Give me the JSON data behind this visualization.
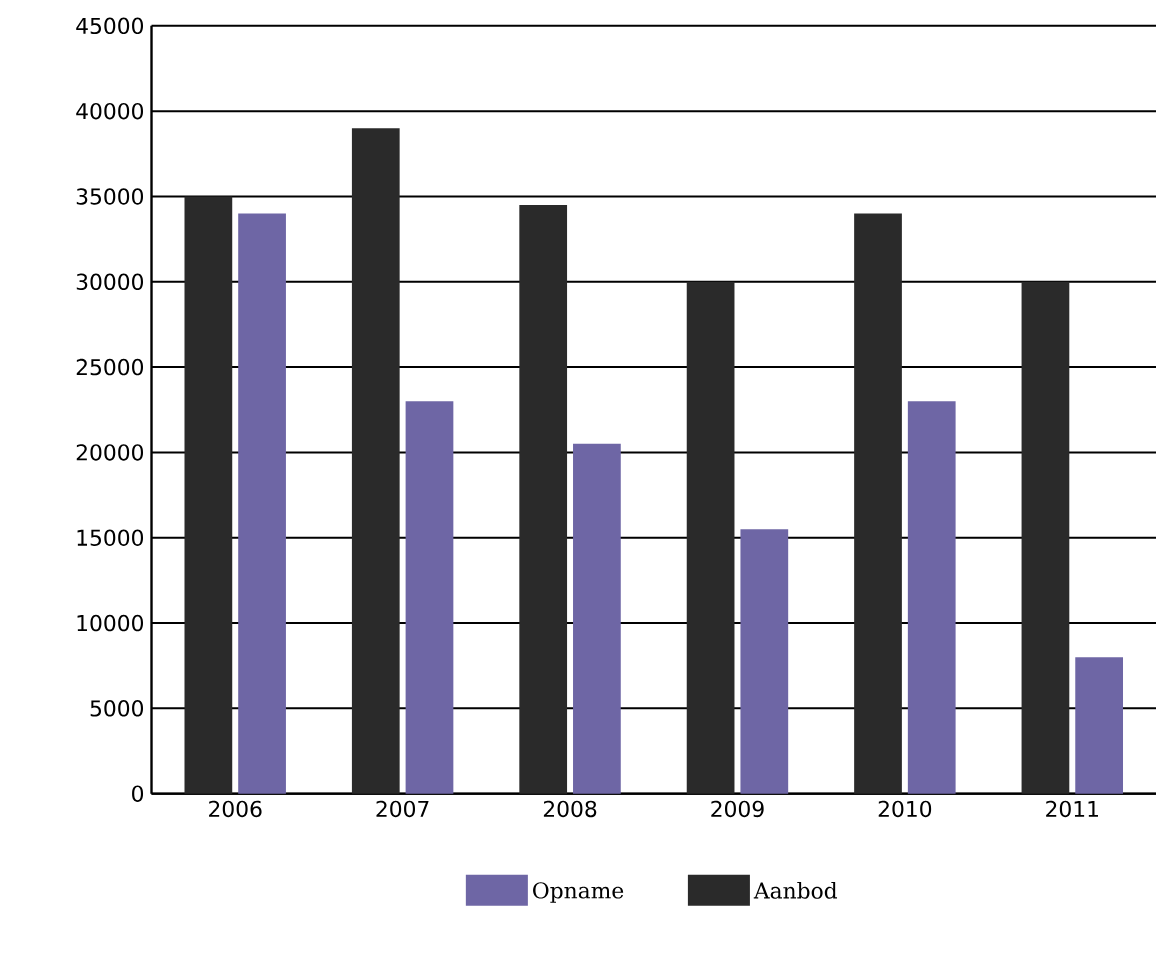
{
  "chart_data": {
    "type": "bar",
    "categories": [
      "2006",
      "2007",
      "2008",
      "2009",
      "2010",
      "2011"
    ],
    "series": [
      {
        "name": "Aanbod",
        "color": "#2a2a2a",
        "values": [
          35000,
          39000,
          34500,
          30000,
          34000,
          30000
        ]
      },
      {
        "name": "Opname",
        "color": "#6e66a5",
        "values": [
          34000,
          23000,
          20500,
          15500,
          23000,
          8000
        ]
      }
    ],
    "ylim": [
      0,
      45000
    ],
    "yticks": [
      0,
      5000,
      10000,
      15000,
      20000,
      25000,
      30000,
      35000,
      40000,
      45000
    ],
    "grid": "y",
    "legend": "bottom"
  }
}
